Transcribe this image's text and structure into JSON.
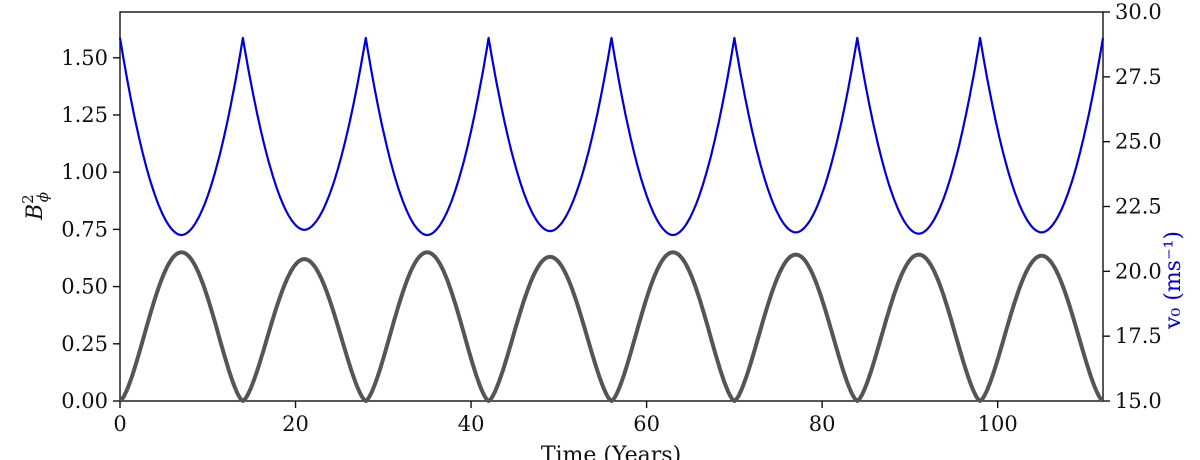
{
  "chart_data": {
    "type": "line",
    "xlabel": "Time (Years)",
    "ylabel_left": "B_ϕ²",
    "ylabel_right": "v₀ (ms⁻¹)",
    "xlim": [
      0,
      112
    ],
    "ylim_left": [
      0,
      1.7
    ],
    "ylim_right": [
      15,
      30
    ],
    "x_ticks": [
      0,
      20,
      40,
      60,
      80,
      100
    ],
    "x_tick_labels": [
      "0",
      "20",
      "40",
      "60",
      "80",
      "100"
    ],
    "y_left_ticks": [
      0,
      0.25,
      0.5,
      0.75,
      1.0,
      1.25,
      1.5
    ],
    "y_left_tick_labels": [
      "0.00",
      "0.25",
      "0.50",
      "0.75",
      "1.00",
      "1.25",
      "1.50"
    ],
    "y_right_ticks": [
      15,
      17.5,
      20,
      22.5,
      25,
      27.5,
      30
    ],
    "y_right_tick_labels": [
      "15.0",
      "17.5",
      "20.0",
      "22.5",
      "25.0",
      "27.5",
      "30.0"
    ],
    "grid": false,
    "legend": "none",
    "series": [
      {
        "axis": "left",
        "color": "#555555",
        "cycle_period": 14,
        "zero_crossings": [
          0,
          14,
          28,
          42,
          56,
          70,
          84,
          98,
          112
        ],
        "cycle_peaks": [
          0.65,
          0.62,
          0.65,
          0.63,
          0.65,
          0.64,
          0.64,
          0.635
        ]
      },
      {
        "axis": "right",
        "color": "#0000dd",
        "cycle_period": 14,
        "peak_times": [
          0,
          14,
          28,
          42,
          56,
          70,
          84,
          98,
          112
        ],
        "peak_value": 29.0,
        "cycle_minima": [
          21.4,
          21.6,
          21.4,
          21.55,
          21.4,
          21.5,
          21.45,
          21.5
        ]
      }
    ],
    "colors": {
      "left_axis": "#111111",
      "right_axis_label": "#0000dd"
    }
  }
}
